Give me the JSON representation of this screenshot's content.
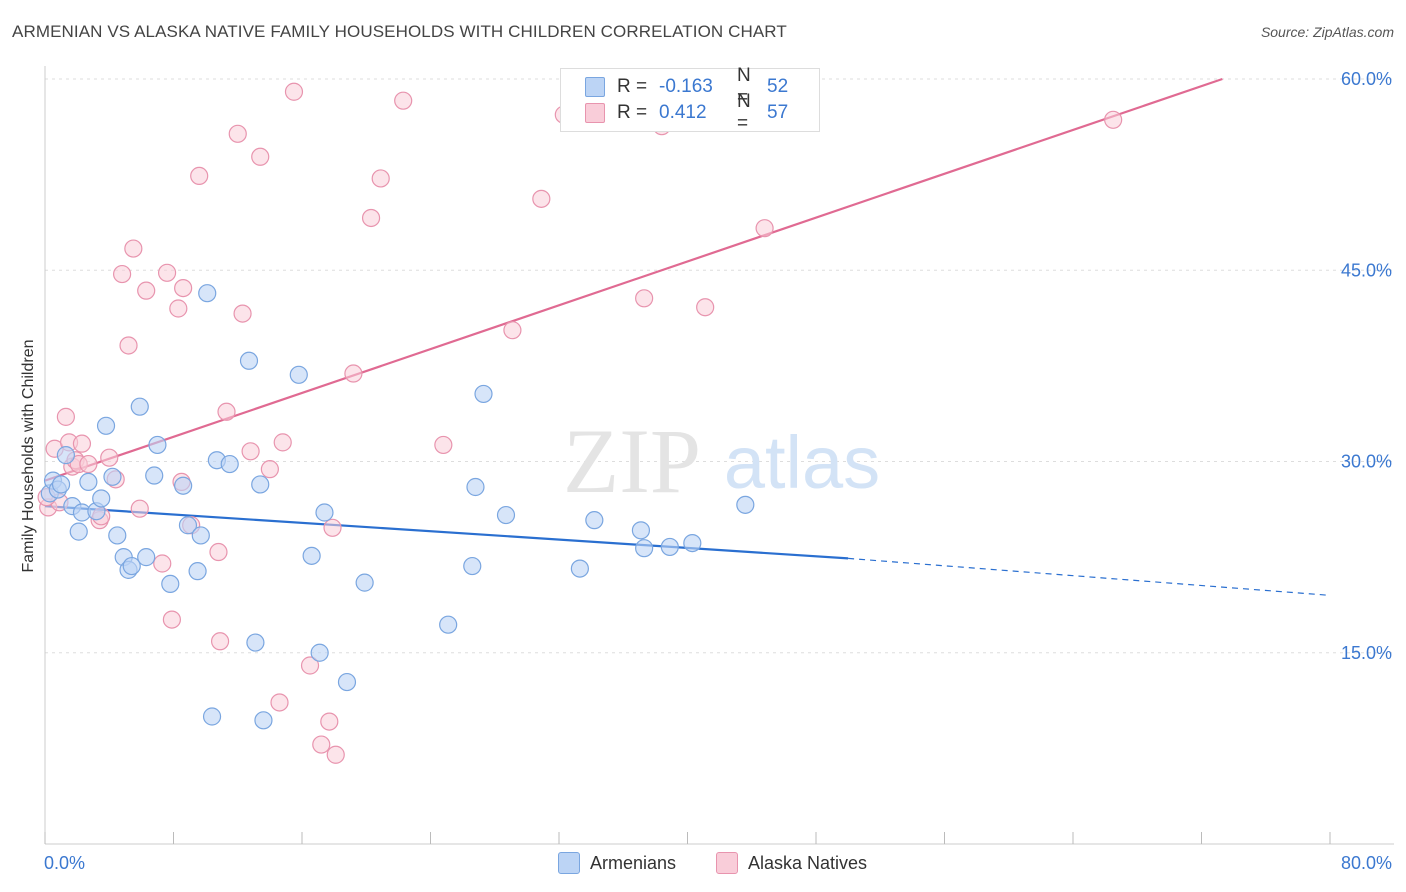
{
  "title": "ARMENIAN VS ALASKA NATIVE FAMILY HOUSEHOLDS WITH CHILDREN CORRELATION CHART",
  "source": "Source: ZipAtlas.com",
  "watermark": {
    "zip": "ZIP",
    "atlas": "atlas"
  },
  "legend": {
    "armenians": {
      "r_label": "R =",
      "r_value": "-0.163",
      "n_label": "N =",
      "n_value": "52",
      "name": "Armenians"
    },
    "alaska": {
      "r_label": "R =",
      "r_value": "0.412",
      "n_label": "N =",
      "n_value": "57",
      "name": "Alaska Natives"
    }
  },
  "colors": {
    "armenian_fill": "#bcd4f5",
    "armenian_stroke": "#7aa6e0",
    "armenian_line": "#2a6fd0",
    "alaska_fill": "#f9cdd9",
    "alaska_stroke": "#e894ae",
    "alaska_line": "#e06a92",
    "grid": "#dddddd",
    "tick_label": "#3b78d0"
  },
  "chart_data": {
    "type": "scatter",
    "title": "ARMENIAN VS ALASKA NATIVE FAMILY HOUSEHOLDS WITH CHILDREN CORRELATION CHART",
    "xlabel": "",
    "ylabel": "Family Households with Children",
    "xlim": [
      0,
      80
    ],
    "ylim": [
      0,
      60
    ],
    "x_tick_labels": [
      {
        "value": 0,
        "label": "0.0%"
      },
      {
        "value": 80,
        "label": "80.0%"
      }
    ],
    "y_tick_labels": [
      {
        "value": 15,
        "label": "15.0%"
      },
      {
        "value": 30,
        "label": "30.0%"
      },
      {
        "value": 45,
        "label": "45.0%"
      },
      {
        "value": 60,
        "label": "60.0%"
      }
    ],
    "series": [
      {
        "name": "Armenians",
        "r": -0.163,
        "n": 52,
        "trend": {
          "x0": 0,
          "y0": 26.5,
          "x1": 50,
          "y1": 22.4,
          "dash_to_x": 80,
          "dash_to_y": 19.5
        },
        "points": [
          [
            0.3,
            27.5
          ],
          [
            0.5,
            28.5
          ],
          [
            0.8,
            27.8
          ],
          [
            1.0,
            28.2
          ],
          [
            1.3,
            30.5
          ],
          [
            1.7,
            26.5
          ],
          [
            2.1,
            24.5
          ],
          [
            2.3,
            26.0
          ],
          [
            2.7,
            28.4
          ],
          [
            3.2,
            26.1
          ],
          [
            3.5,
            27.1
          ],
          [
            3.8,
            32.8
          ],
          [
            4.2,
            28.8
          ],
          [
            4.5,
            24.2
          ],
          [
            4.9,
            22.5
          ],
          [
            5.2,
            21.5
          ],
          [
            5.4,
            21.8
          ],
          [
            5.9,
            34.3
          ],
          [
            6.3,
            22.5
          ],
          [
            6.8,
            28.9
          ],
          [
            7.0,
            31.3
          ],
          [
            7.8,
            20.4
          ],
          [
            8.6,
            28.1
          ],
          [
            8.9,
            25.0
          ],
          [
            9.5,
            21.4
          ],
          [
            9.7,
            24.2
          ],
          [
            10.1,
            43.2
          ],
          [
            10.4,
            10.0
          ],
          [
            10.7,
            30.1
          ],
          [
            11.5,
            29.8
          ],
          [
            12.7,
            37.9
          ],
          [
            13.1,
            15.8
          ],
          [
            13.4,
            28.2
          ],
          [
            13.6,
            9.7
          ],
          [
            15.8,
            36.8
          ],
          [
            16.6,
            22.6
          ],
          [
            17.1,
            15.0
          ],
          [
            17.4,
            26.0
          ],
          [
            18.8,
            12.7
          ],
          [
            19.9,
            20.5
          ],
          [
            25.1,
            17.2
          ],
          [
            26.6,
            21.8
          ],
          [
            26.8,
            28.0
          ],
          [
            27.3,
            35.3
          ],
          [
            28.7,
            25.8
          ],
          [
            33.3,
            21.6
          ],
          [
            34.2,
            25.4
          ],
          [
            37.1,
            24.6
          ],
          [
            37.3,
            23.2
          ],
          [
            38.9,
            23.3
          ],
          [
            40.3,
            23.6
          ],
          [
            43.6,
            26.6
          ]
        ]
      },
      {
        "name": "Alaska Natives",
        "r": 0.412,
        "n": 57,
        "trend": {
          "x0": 0,
          "y0": 28.5,
          "x1": 73.3,
          "y1": 60.0
        },
        "points": [
          [
            0.2,
            26.4
          ],
          [
            0.6,
            31.0
          ],
          [
            0.9,
            26.8
          ],
          [
            1.3,
            33.5
          ],
          [
            1.5,
            31.5
          ],
          [
            1.7,
            29.6
          ],
          [
            1.9,
            30.1
          ],
          [
            2.1,
            29.8
          ],
          [
            2.3,
            31.4
          ],
          [
            2.7,
            29.8
          ],
          [
            3.4,
            25.4
          ],
          [
            3.5,
            25.7
          ],
          [
            4.0,
            30.3
          ],
          [
            4.4,
            28.6
          ],
          [
            4.8,
            44.7
          ],
          [
            5.2,
            39.1
          ],
          [
            5.5,
            46.7
          ],
          [
            5.9,
            26.3
          ],
          [
            6.3,
            43.4
          ],
          [
            7.3,
            22.0
          ],
          [
            7.6,
            44.8
          ],
          [
            7.9,
            17.6
          ],
          [
            8.3,
            42.0
          ],
          [
            8.5,
            28.4
          ],
          [
            8.6,
            43.6
          ],
          [
            9.1,
            25.0
          ],
          [
            9.6,
            52.4
          ],
          [
            10.8,
            22.9
          ],
          [
            10.9,
            15.9
          ],
          [
            11.3,
            33.9
          ],
          [
            12.0,
            55.7
          ],
          [
            12.3,
            41.6
          ],
          [
            12.8,
            30.8
          ],
          [
            13.4,
            53.9
          ],
          [
            14.0,
            29.4
          ],
          [
            14.6,
            11.1
          ],
          [
            14.8,
            31.5
          ],
          [
            15.5,
            59.0
          ],
          [
            16.5,
            14.0
          ],
          [
            17.2,
            7.8
          ],
          [
            17.7,
            9.6
          ],
          [
            17.9,
            24.8
          ],
          [
            18.1,
            7.0
          ],
          [
            19.2,
            36.9
          ],
          [
            20.3,
            49.1
          ],
          [
            20.9,
            52.2
          ],
          [
            22.3,
            58.3
          ],
          [
            24.8,
            31.3
          ],
          [
            29.1,
            40.3
          ],
          [
            30.9,
            50.6
          ],
          [
            32.3,
            57.2
          ],
          [
            37.3,
            42.8
          ],
          [
            38.4,
            56.3
          ],
          [
            41.1,
            42.1
          ],
          [
            44.8,
            48.3
          ],
          [
            66.5,
            56.8
          ],
          [
            0.1,
            27.2
          ]
        ]
      }
    ]
  }
}
